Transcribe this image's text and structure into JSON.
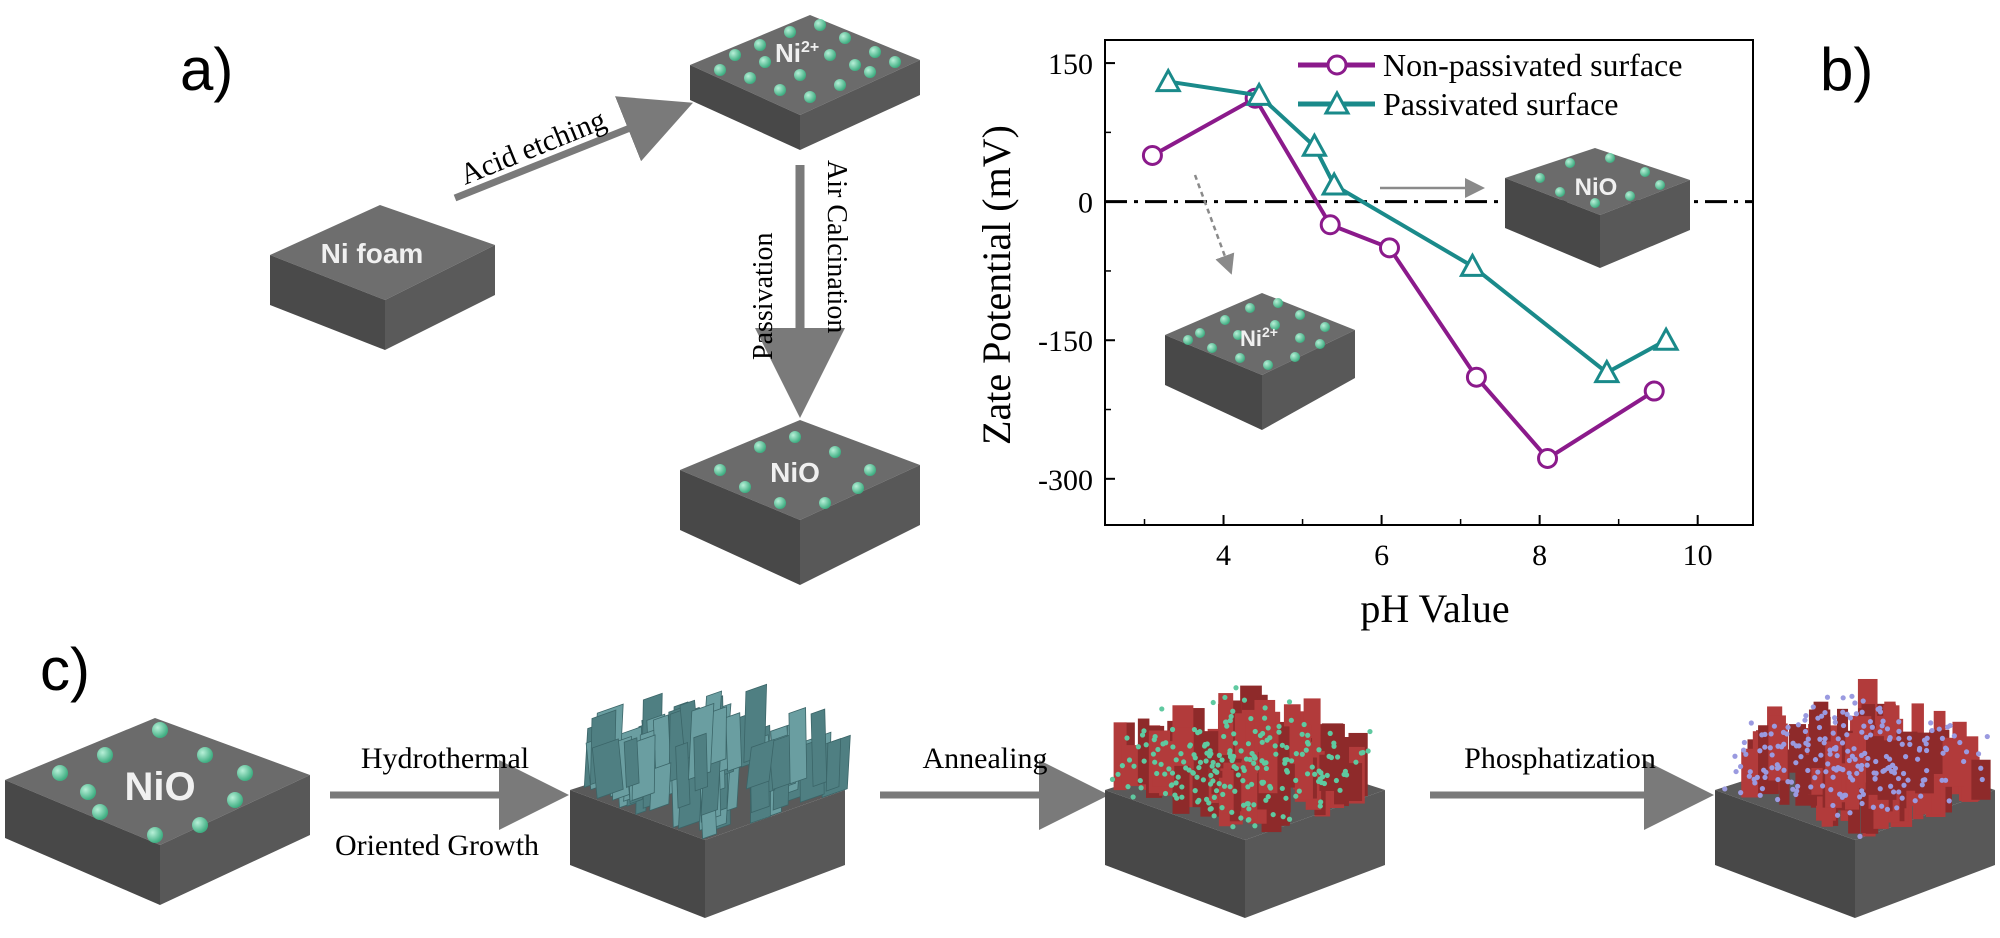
{
  "panel_a": {
    "panel_label": "a)",
    "ni_foam_label": "Ni foam",
    "ni2_label": "Ni",
    "ni2_charge": "2+",
    "nio_label": "NiO",
    "arrow_acid": "Acid etching",
    "arrow_passivation": "Passivation",
    "arrow_air": "Air Calcination"
  },
  "panel_b": {
    "panel_label": "b)",
    "inset_nio_label": "NiO",
    "inset_ni2_label": "Ni",
    "inset_ni2_charge": "2+"
  },
  "panel_c": {
    "panel_label": "c)",
    "nio_label": "NiO",
    "step1_top": "Hydrothermal",
    "step1_bottom": "Oriented Growth",
    "step2": "Annealing",
    "step3": "Phosphatization"
  },
  "colors": {
    "slab_top": "#6b6b6b",
    "slab_side": "#4a4a4a",
    "dot": "#5fc9a0",
    "purple": "#8b1a8b",
    "teal": "#1a8a8a",
    "nanosheet": "#5f8f92",
    "red_crystal": "#b03a3a",
    "blue_dot": "#9a9ae0",
    "arrow": "#7a7a7a"
  },
  "chart_data": {
    "type": "line",
    "xlabel": "pH Value",
    "ylabel": "Zate Potential (mV)",
    "xlim": [
      2.5,
      10.7
    ],
    "ylim": [
      -350,
      175
    ],
    "xticks": [
      4,
      6,
      8,
      10
    ],
    "yticks": [
      150,
      0,
      -150,
      -300
    ],
    "reference_line_y": 0,
    "legend_position": "top-right",
    "series": [
      {
        "name": "Non-passivated surface",
        "marker": "circle",
        "color": "#8b1a8b",
        "x": [
          3.1,
          4.4,
          5.35,
          6.1,
          7.2,
          8.1,
          9.45
        ],
        "y": [
          50,
          112,
          -25,
          -50,
          -190,
          -278,
          -205
        ]
      },
      {
        "name": "Passivated surface",
        "marker": "triangle",
        "color": "#1a8a8a",
        "x": [
          3.3,
          4.45,
          5.15,
          5.4,
          7.15,
          8.85,
          9.6
        ],
        "y": [
          130,
          115,
          60,
          18,
          -70,
          -185,
          -150
        ]
      }
    ]
  }
}
